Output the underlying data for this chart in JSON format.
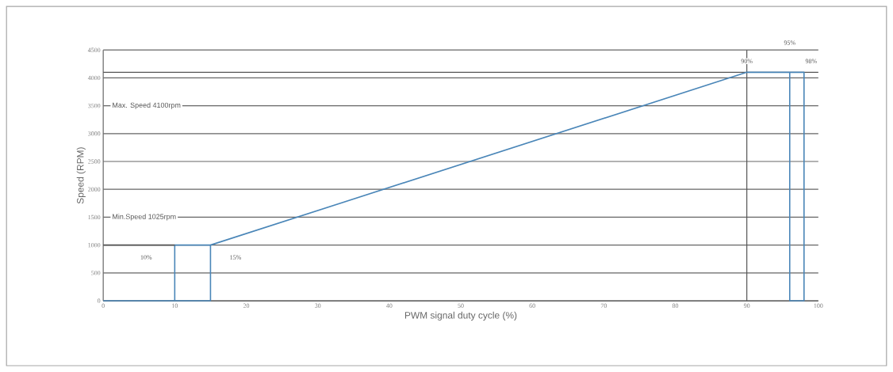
{
  "chart_data": {
    "type": "line",
    "xlabel": "PWM signal duty cycle (%)",
    "ylabel": "Speed (RPM)",
    "xlim": [
      0,
      100
    ],
    "xticks": [
      0,
      10,
      20,
      30,
      40,
      50,
      60,
      70,
      80,
      90,
      100
    ],
    "ylim": [
      0,
      4500
    ],
    "yticks": [
      0,
      500,
      1000,
      1500,
      2000,
      2500,
      3000,
      3500,
      4000,
      4500
    ],
    "grid": "y",
    "marker": "none",
    "line_style": "solid",
    "series": [
      {
        "color": "#4a86b8",
        "x": [
          0,
          15,
          15,
          90,
          98,
          98,
          96,
          96
        ],
        "values": [
          0,
          0,
          1000,
          4100,
          4100,
          0,
          0,
          4100
        ]
      },
      {
        "color": "#4a86b8",
        "x": [
          15,
          10,
          10
        ],
        "values": [
          1000,
          1000,
          0
        ]
      },
      {
        "color": "#555555",
        "x": [
          0,
          10
        ],
        "values": [
          1000,
          1000
        ]
      }
    ],
    "ref_lines": [
      {
        "axis": "y",
        "value": 4100,
        "color": "#555555"
      },
      {
        "axis": "x",
        "value": 90,
        "color": "#555555"
      }
    ],
    "annotations": [
      "Max. Speed 4100rpm",
      "Min.Speed 1025rpm",
      "10%",
      "15%",
      "90%",
      "95%",
      "98%"
    ]
  }
}
